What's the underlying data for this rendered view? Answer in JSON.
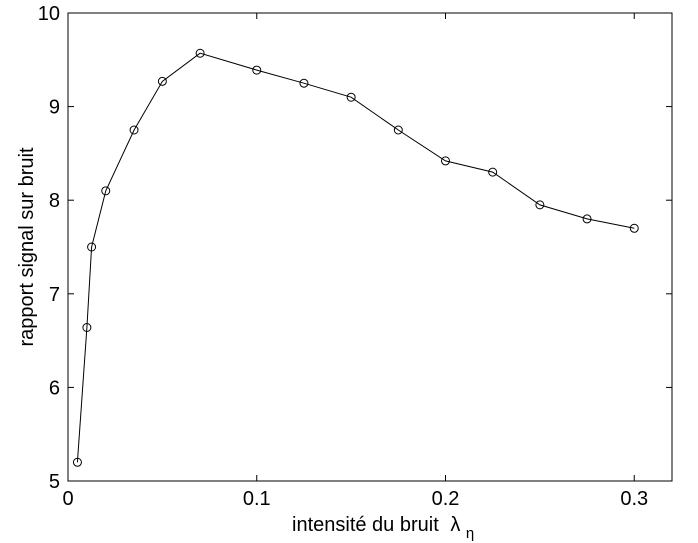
{
  "chart_data": {
    "type": "line",
    "title": "",
    "xlabel": "intensité du bruit",
    "xlabel_symbol": "λ",
    "xlabel_subscript": "η",
    "ylabel": "rapport signal sur bruit",
    "xlim": [
      0,
      0.32
    ],
    "ylim": [
      5,
      10
    ],
    "x_ticks": [
      0,
      0.1,
      0.2,
      0.3
    ],
    "x_tick_labels": [
      "0",
      "0.1",
      "0.2",
      "0.3"
    ],
    "y_ticks": [
      5,
      6,
      7,
      8,
      9,
      10
    ],
    "y_tick_labels": [
      "5",
      "6",
      "7",
      "8",
      "9",
      "10"
    ],
    "grid": false,
    "marker": "circle",
    "series": [
      {
        "x": [
          0.005,
          0.01,
          0.0125,
          0.02,
          0.035,
          0.05,
          0.07,
          0.1,
          0.125,
          0.15,
          0.175,
          0.2,
          0.225,
          0.25,
          0.275,
          0.3
        ],
        "y": [
          5.2,
          6.64,
          7.5,
          8.1,
          8.75,
          9.27,
          9.57,
          9.39,
          9.25,
          9.1,
          8.75,
          8.42,
          8.3,
          7.95,
          7.8,
          7.7
        ]
      }
    ]
  }
}
